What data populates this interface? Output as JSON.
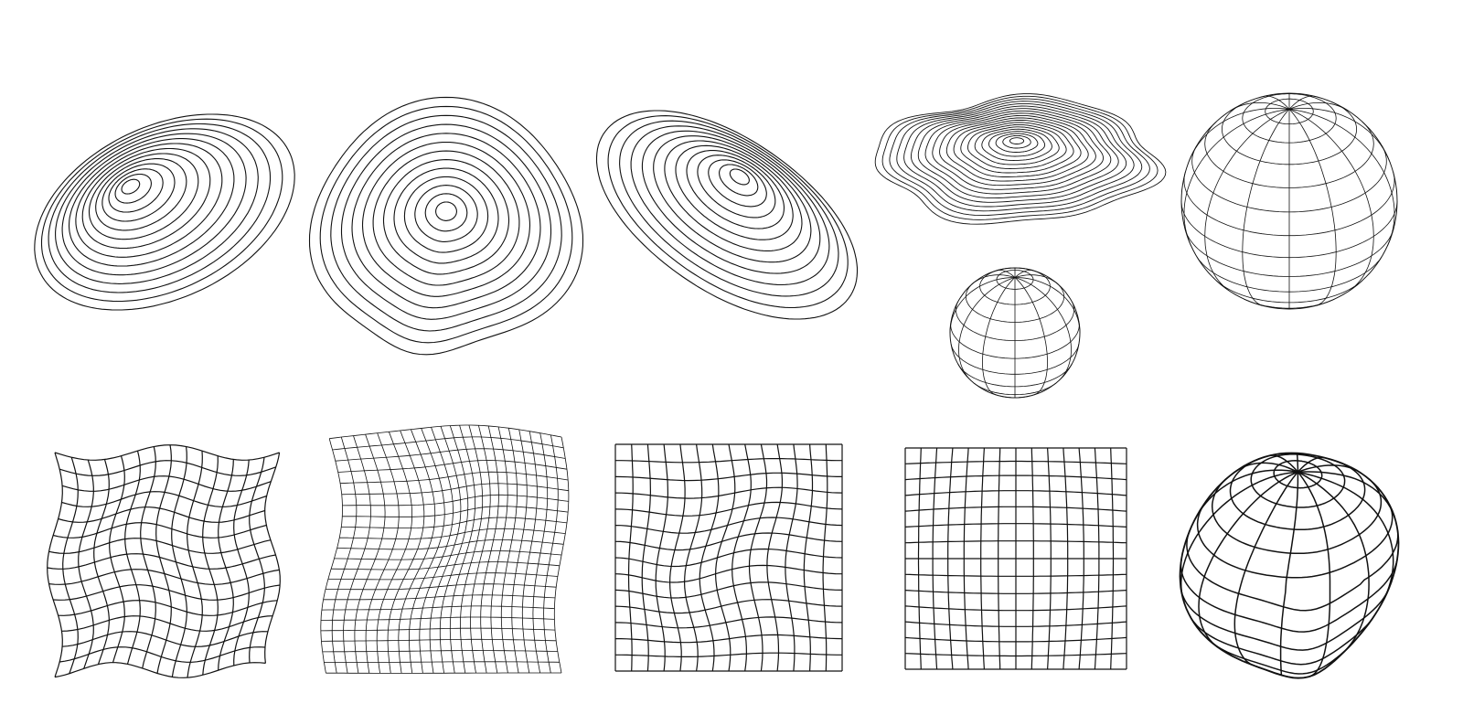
{
  "colors": {
    "background": "#ffffff",
    "line": "#111111"
  },
  "top_row": [
    {
      "name": "tilted-concentric-contour-disc",
      "rings": 14
    },
    {
      "name": "dripping-concentric-contour-blob",
      "rings": 13
    },
    {
      "name": "bean-concentric-contour-blob",
      "rings": 13
    },
    {
      "name": "wavy-flat-contour-blob",
      "rings": 20
    },
    {
      "name": "large-wireframe-sphere",
      "meridians": 14,
      "parallels": 14
    },
    {
      "name": "small-wireframe-sphere",
      "meridians": 12,
      "parallels": 11
    }
  ],
  "bottom_row": [
    {
      "name": "wavy-square-grid",
      "cells": 14
    },
    {
      "name": "warped-fine-grid",
      "cells": 22
    },
    {
      "name": "distorted-square-grid",
      "cells": 14
    },
    {
      "name": "bulged-square-grid",
      "cells": 14
    },
    {
      "name": "warped-wireframe-sphere",
      "meridians": 14,
      "parallels": 14
    }
  ]
}
